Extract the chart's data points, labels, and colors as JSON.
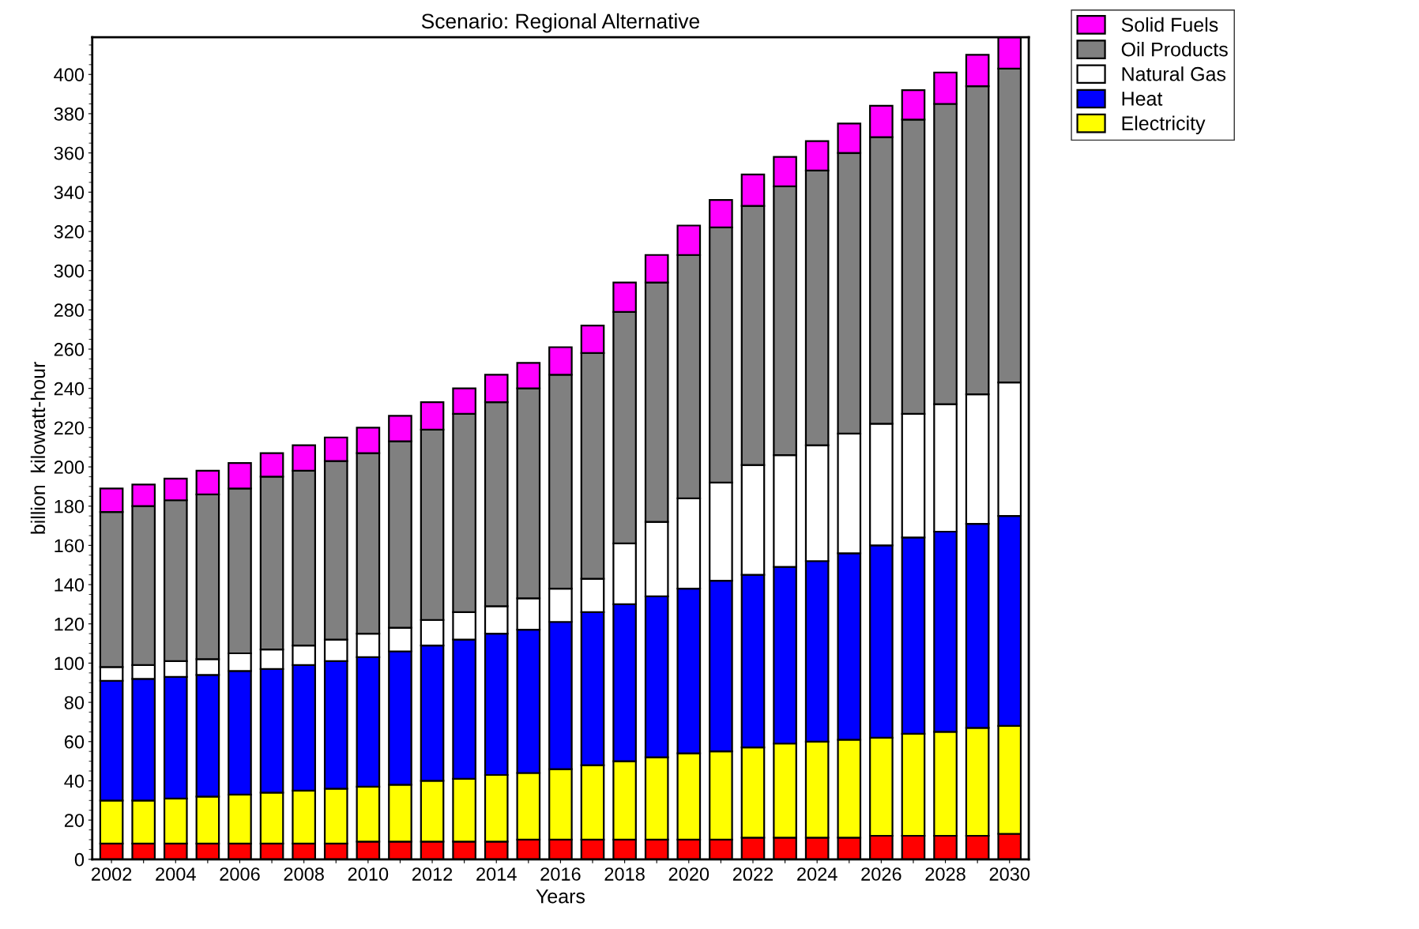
{
  "chart_data": {
    "type": "bar",
    "stacked": true,
    "title": "Scenario: Regional Alternative",
    "xlabel": "Years",
    "ylabel": "billion  kilowatt-hour",
    "categories": [
      "2002",
      null,
      "2004",
      null,
      "2006",
      null,
      "2008",
      null,
      "2010",
      null,
      "2012",
      null,
      "2014",
      null,
      "2016",
      null,
      "2018",
      null,
      "2020",
      null,
      "2022",
      null,
      "2024",
      null,
      "2026",
      null,
      "2028",
      null,
      "2030"
    ],
    "series": [
      {
        "color": "#ff0000",
        "values": [
          8,
          8,
          8,
          8,
          8,
          8,
          8,
          8,
          9,
          9,
          9,
          9,
          9,
          10,
          10,
          10,
          10,
          10,
          10,
          10,
          11,
          11,
          11,
          11,
          12,
          12,
          12,
          12,
          13
        ]
      },
      {
        "name": "Electricity",
        "color": "#ffff00",
        "values": [
          22,
          22,
          23,
          24,
          25,
          26,
          27,
          28,
          28,
          29,
          31,
          32,
          34,
          34,
          36,
          38,
          40,
          42,
          44,
          45,
          46,
          48,
          49,
          50,
          50,
          52,
          53,
          55,
          55
        ]
      },
      {
        "name": "Heat",
        "color": "#0000ff",
        "values": [
          61,
          62,
          62,
          62,
          63,
          63,
          64,
          65,
          66,
          68,
          69,
          71,
          72,
          73,
          75,
          78,
          80,
          82,
          84,
          87,
          88,
          90,
          92,
          95,
          98,
          100,
          102,
          104,
          107
        ]
      },
      {
        "name": "Natural Gas",
        "color": "#ffffff",
        "values": [
          7,
          7,
          8,
          8,
          9,
          10,
          10,
          11,
          12,
          12,
          13,
          14,
          14,
          16,
          17,
          17,
          31,
          38,
          46,
          50,
          56,
          57,
          59,
          61,
          62,
          63,
          65,
          66,
          68
        ]
      },
      {
        "name": "Oil Products",
        "color": "#808080",
        "values": [
          79,
          81,
          82,
          84,
          84,
          88,
          89,
          91,
          92,
          95,
          97,
          101,
          104,
          107,
          109,
          115,
          118,
          122,
          124,
          130,
          132,
          137,
          140,
          143,
          146,
          150,
          153,
          157,
          160
        ]
      },
      {
        "name": "Solid Fuels",
        "color": "#ff00ff",
        "values": [
          12,
          11,
          11,
          12,
          13,
          12,
          13,
          12,
          13,
          13,
          14,
          13,
          14,
          13,
          14,
          14,
          15,
          14,
          15,
          14,
          16,
          15,
          15,
          15,
          16,
          15,
          16,
          16,
          16
        ]
      }
    ],
    "ylim": [
      0,
      419
    ],
    "yticks": [
      0,
      20,
      40,
      60,
      80,
      100,
      120,
      140,
      160,
      180,
      200,
      220,
      240,
      260,
      280,
      300,
      320,
      340,
      360,
      380,
      400
    ],
    "grid": false,
    "legend": "top right"
  }
}
